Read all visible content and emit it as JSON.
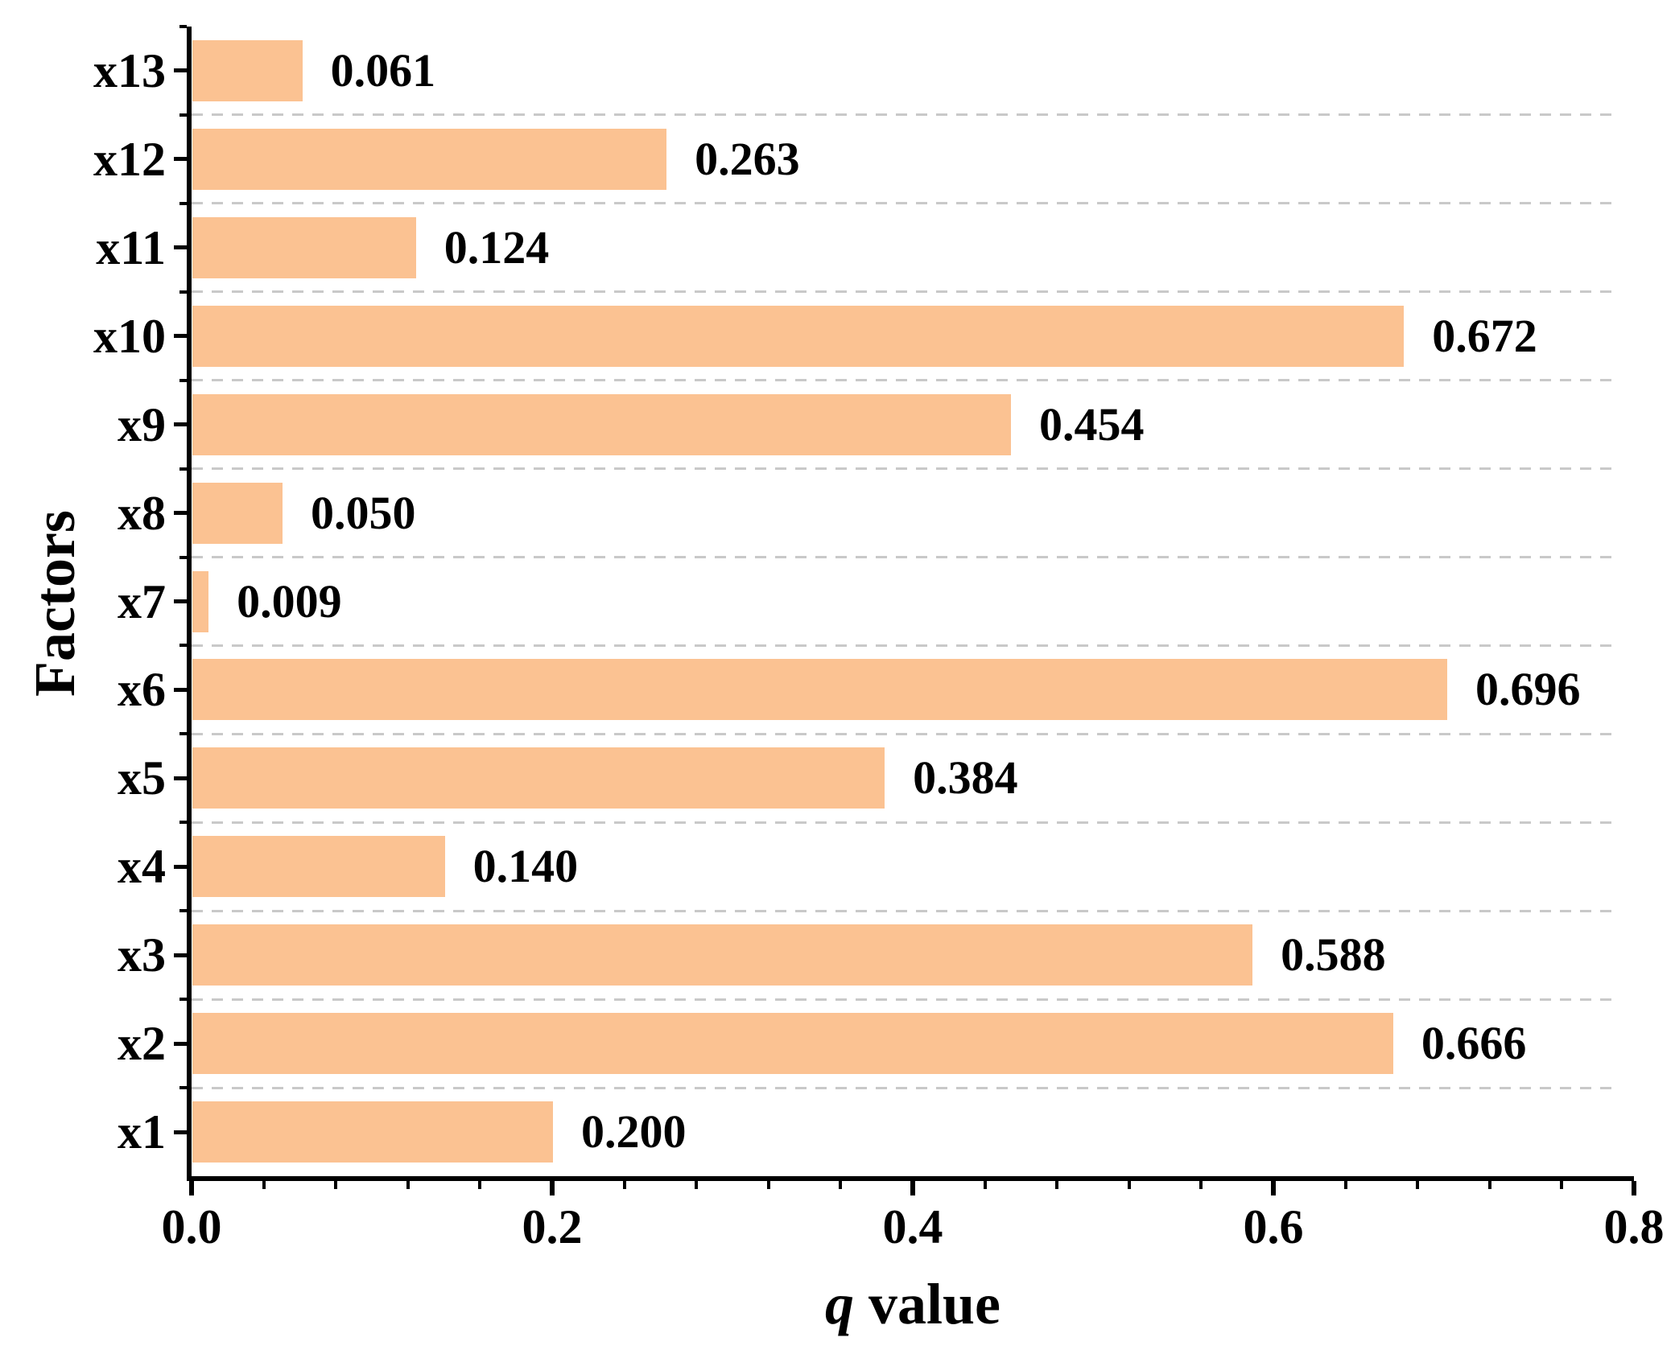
{
  "chart_data": {
    "type": "bar",
    "orientation": "horizontal",
    "title": "",
    "xlabel": "q value",
    "xlabel_italic_part": "q",
    "xlabel_regular_part": " value",
    "ylabel": "Factors",
    "categories_top_to_bottom": [
      "x13",
      "x12",
      "x11",
      "x10",
      "x9",
      "x8",
      "x7",
      "x6",
      "x5",
      "x4",
      "x3",
      "x2",
      "x1"
    ],
    "values_top_to_bottom": [
      0.061,
      0.263,
      0.124,
      0.672,
      0.454,
      0.05,
      0.009,
      0.696,
      0.384,
      0.14,
      0.588,
      0.666,
      0.2
    ],
    "value_labels_top_to_bottom": [
      "0.061",
      "0.263",
      "0.124",
      "0.672",
      "0.454",
      "0.050",
      "0.009",
      "0.696",
      "0.384",
      "0.140",
      "0.588",
      "0.666",
      "0.200"
    ],
    "x_tick_labels": [
      "0.0",
      "0.2",
      "0.4",
      "0.6",
      "0.8"
    ],
    "xlim": [
      0.0,
      0.8
    ],
    "x_major_step": 0.2,
    "x_minor_step": 0.04,
    "grid": {
      "style": "dashed",
      "placement": "between-category-rows",
      "color": "#C9C9C9"
    },
    "legend": "none",
    "bar_color": "#FBC292",
    "axis_color": "#000000",
    "text_color": "#000000",
    "background_color": "#FFFFFF"
  }
}
